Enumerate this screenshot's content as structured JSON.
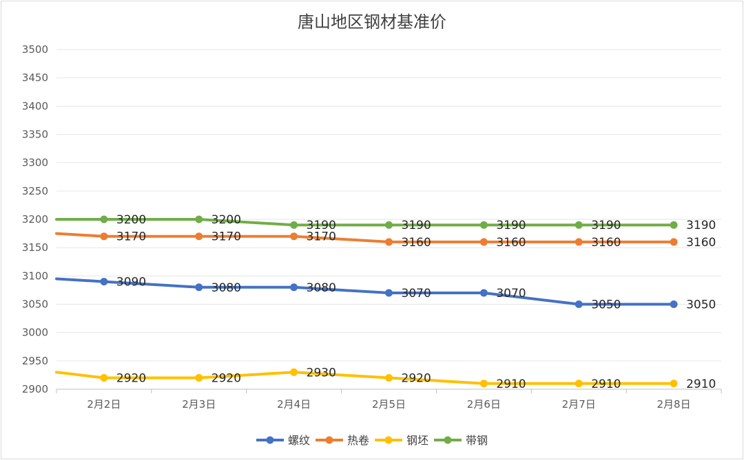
{
  "chart_data": {
    "type": "line",
    "title": "唐山地区钢材基准价",
    "xlabel": "",
    "ylabel": "",
    "ylim": [
      2900,
      3500
    ],
    "yticks": [
      2900,
      2950,
      3000,
      3050,
      3100,
      3150,
      3200,
      3250,
      3300,
      3350,
      3400,
      3450,
      3500
    ],
    "categories": [
      "2月2日",
      "2月3日",
      "2月4日",
      "2月5日",
      "2月6日",
      "2月7日",
      "2月8日"
    ],
    "grid": true,
    "legend": "bottom",
    "series": [
      {
        "name": "螺纹",
        "color": "#4472c4",
        "start": 3095,
        "values": [
          3090,
          3080,
          3080,
          3070,
          3070,
          3050,
          3050
        ]
      },
      {
        "name": "热卷",
        "color": "#ed7d31",
        "start": 3175,
        "values": [
          3170,
          3170,
          3170,
          3160,
          3160,
          3160,
          3160
        ]
      },
      {
        "name": "钢坯",
        "color": "#ffc000",
        "start": 2930,
        "values": [
          2920,
          2920,
          2930,
          2920,
          2910,
          2910,
          2910
        ]
      },
      {
        "name": "带钢",
        "color": "#70ad47",
        "start": 3200,
        "values": [
          3200,
          3200,
          3190,
          3190,
          3190,
          3190,
          3190
        ]
      }
    ]
  }
}
